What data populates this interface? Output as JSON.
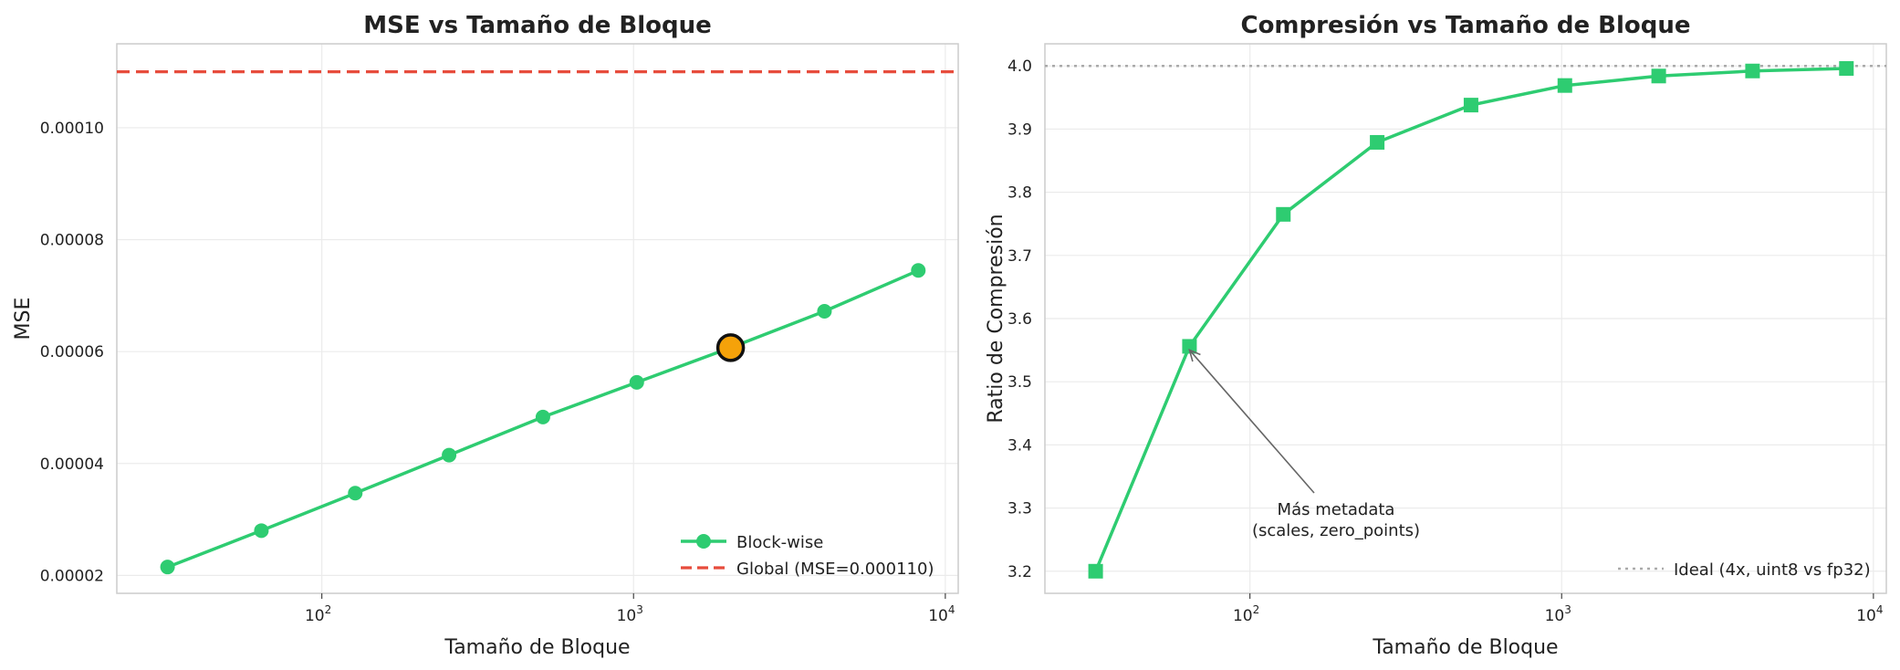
{
  "chart_data": [
    {
      "type": "line",
      "title": "MSE vs Tamaño de Bloque",
      "xlabel": "Tamaño de Bloque",
      "ylabel": "MSE",
      "xscale": "log",
      "xlim": [
        22,
        11000
      ],
      "ylim": [
        1.68e-05,
        0.000115
      ],
      "yticks": [
        "0.00002",
        "0.00004",
        "0.00006",
        "0.00008",
        "0.00010"
      ],
      "xticks": [
        {
          "base": "10",
          "exp": "2"
        },
        {
          "base": "10",
          "exp": "3"
        },
        {
          "base": "10",
          "exp": "4"
        }
      ],
      "grid": true,
      "legend_position": "lower right",
      "series": [
        {
          "name": "Block-wise",
          "color": "#2ecc71",
          "marker": "circle",
          "x": [
            32,
            64,
            128,
            256,
            512,
            1024,
            2048,
            4096,
            8192
          ],
          "y": [
            2.15e-05,
            2.8e-05,
            3.47e-05,
            4.15e-05,
            4.83e-05,
            5.45e-05,
            6.07e-05,
            6.72e-05,
            7.45e-05
          ]
        }
      ],
      "highlight_point": {
        "x": 2048,
        "y": 6.07e-05,
        "color": "#f5a20a"
      },
      "reference_line": {
        "name": "Global (MSE=0.000110)",
        "y": 0.00011,
        "color": "#e74c3c",
        "style": "dashed"
      }
    },
    {
      "type": "line",
      "title": "Compresión vs Tamaño de Bloque",
      "xlabel": "Tamaño de Bloque",
      "ylabel": "Ratio de Compresión",
      "xscale": "log",
      "xlim": [
        22,
        11000
      ],
      "ylim": [
        3.165,
        4.035
      ],
      "yticks": [
        "3.2",
        "3.3",
        "3.4",
        "3.5",
        "3.6",
        "3.7",
        "3.8",
        "3.9",
        "4.0"
      ],
      "xticks": [
        {
          "base": "10",
          "exp": "2"
        },
        {
          "base": "10",
          "exp": "3"
        },
        {
          "base": "10",
          "exp": "4"
        }
      ],
      "grid": true,
      "legend_position": "lower right",
      "series": [
        {
          "color": "#2ecc71",
          "marker": "square",
          "x": [
            32,
            64,
            128,
            256,
            512,
            1024,
            2048,
            4096,
            8192
          ],
          "y": [
            3.2,
            3.556,
            3.765,
            3.879,
            3.938,
            3.969,
            3.984,
            3.992,
            3.996
          ]
        }
      ],
      "reference_line": {
        "name": "Ideal (4x, uint8 vs fp32)",
        "y": 4.0,
        "color": "#aaaaaa",
        "style": "dotted"
      },
      "annotation": {
        "lines": [
          "Más metadata",
          "(scales, zero_points)"
        ],
        "target_x": 64,
        "target_y": 3.556
      }
    }
  ]
}
